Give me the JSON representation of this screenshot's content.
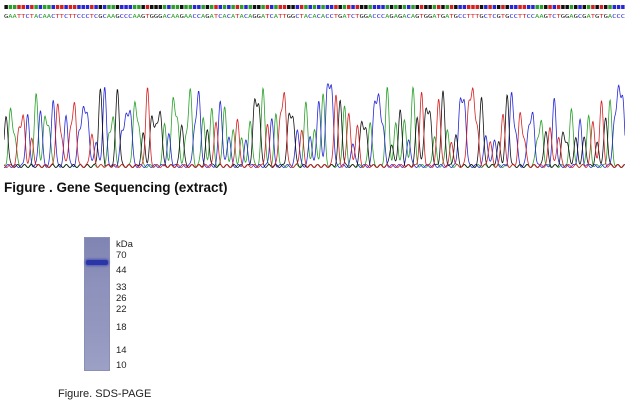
{
  "sequence": {
    "bases": "GAATTCTACAACTTCTTCCCTCGCAAGCCCAAGTGGGACAAGAACCAGATCACATACAGGATCATTGGCTACACACCTGATCTGGACCCAGAGACAGTGGATGATGCCTTTGCTCGTGCCTTCCAAGTCTGGAGCGATGTGACCC",
    "caption": "Figure . Gene Sequencing (extract)"
  },
  "base_colors": {
    "A": "#2aa02a",
    "C": "#2727d8",
    "G": "#111111",
    "T": "#d62020"
  },
  "gel": {
    "unit_label": "kDa",
    "markers": [
      "70",
      "44",
      "33",
      "26",
      "22",
      "18",
      "14",
      "10"
    ],
    "caption": "Figure. SDS-PAGE"
  }
}
